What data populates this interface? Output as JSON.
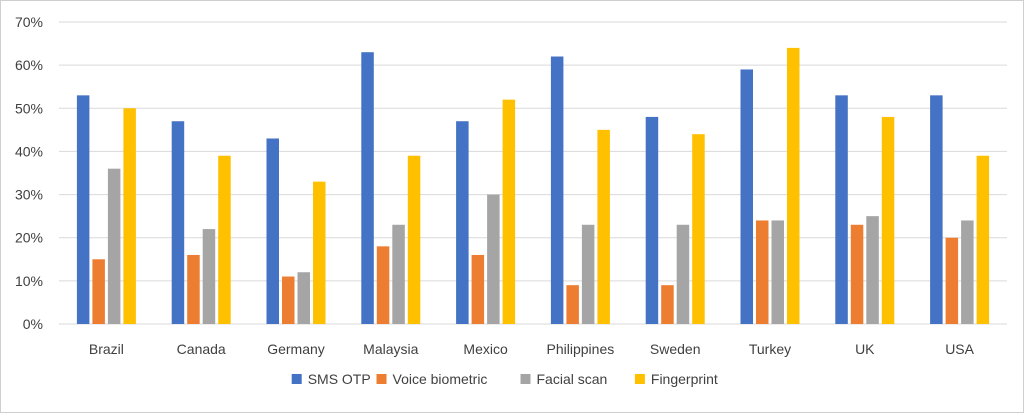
{
  "chart_data": {
    "type": "bar",
    "title": "",
    "xlabel": "",
    "ylabel": "",
    "categories": [
      "Brazil",
      "Canada",
      "Germany",
      "Malaysia",
      "Mexico",
      "Philippines",
      "Sweden",
      "Turkey",
      "UK",
      "USA"
    ],
    "series": [
      {
        "name": "SMS OTP",
        "color": "#4472C4",
        "values": [
          53,
          47,
          43,
          63,
          47,
          62,
          48,
          59,
          53,
          53
        ]
      },
      {
        "name": "Voice biometric",
        "color": "#ED7D31",
        "values": [
          15,
          16,
          11,
          18,
          16,
          9,
          9,
          24,
          23,
          20
        ]
      },
      {
        "name": "Facial scan",
        "color": "#A5A5A5",
        "values": [
          36,
          22,
          12,
          23,
          30,
          23,
          23,
          24,
          25,
          24
        ]
      },
      {
        "name": "Fingerprint",
        "color": "#FFC000",
        "values": [
          50,
          39,
          33,
          39,
          52,
          45,
          44,
          64,
          48,
          39
        ]
      }
    ],
    "ylim": [
      0,
      70
    ],
    "yticks": [
      0,
      10,
      20,
      30,
      40,
      50,
      60,
      70
    ],
    "ytick_format": "percent",
    "grid": true,
    "legend_position": "bottom",
    "gridline_color": "#d9d9d9"
  }
}
